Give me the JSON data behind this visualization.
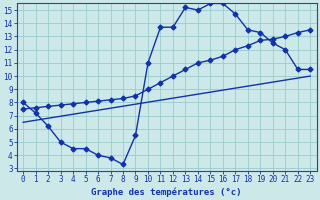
{
  "bg_color": "#cce8e8",
  "grid_color": "#99cccc",
  "line_color": "#1133aa",
  "xlabel": "Graphe des températures (°c)",
  "xlim": [
    0,
    23
  ],
  "ylim": [
    3,
    15
  ],
  "yticks": [
    3,
    4,
    5,
    6,
    7,
    8,
    9,
    10,
    11,
    12,
    13,
    14,
    15
  ],
  "xticks": [
    0,
    1,
    2,
    3,
    4,
    5,
    6,
    7,
    8,
    9,
    10,
    11,
    12,
    13,
    14,
    15,
    16,
    17,
    18,
    19,
    20,
    21,
    22,
    23
  ],
  "curve1_x": [
    0,
    1,
    2,
    3,
    4,
    5,
    6,
    7,
    8,
    9,
    10,
    11,
    12,
    13,
    14,
    15,
    16,
    17,
    18,
    19,
    20,
    21,
    22,
    23
  ],
  "curve1_y": [
    8.0,
    7.2,
    6.2,
    5.0,
    4.5,
    4.5,
    4.0,
    3.8,
    3.3,
    5.5,
    11.0,
    13.7,
    13.7,
    15.2,
    15.0,
    15.5,
    15.5,
    14.7,
    13.5,
    13.3,
    12.5,
    12.0,
    10.5,
    10.5
  ],
  "curve2_x": [
    0,
    1,
    2,
    3,
    4,
    5,
    6,
    7,
    8,
    9,
    10,
    11,
    12,
    13,
    14,
    15,
    16,
    17,
    18,
    19,
    20,
    21,
    22,
    23
  ],
  "curve2_y": [
    7.5,
    7.6,
    7.7,
    7.8,
    7.9,
    8.0,
    8.1,
    8.2,
    8.3,
    8.5,
    9.0,
    9.5,
    10.0,
    10.5,
    11.0,
    11.2,
    11.5,
    12.0,
    12.3,
    12.7,
    12.8,
    13.0,
    13.3,
    13.5
  ],
  "curve3_x": [
    0,
    23
  ],
  "curve3_y": [
    6.5,
    10.0
  ],
  "lw": 1.0,
  "ms": 2.5
}
